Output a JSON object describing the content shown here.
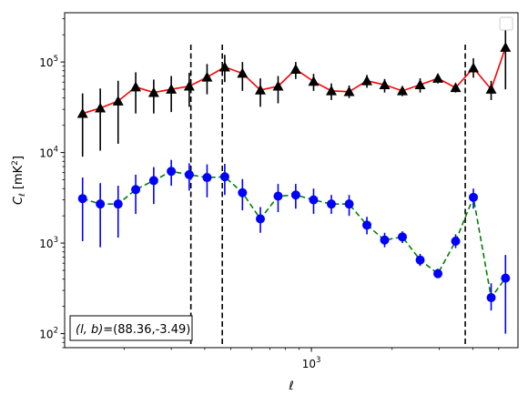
{
  "chart_data": {
    "type": "scatter",
    "xscale": "log",
    "yscale": "log",
    "xlim": [
      120,
      5900
    ],
    "ylim": [
      70,
      350000
    ],
    "grid": false,
    "xlabel": "ℓ",
    "ylabel": "C_ℓ [mK²]",
    "ylabel_main": "C",
    "ylabel_sub": "ℓ",
    "ylabel_unit": " [mK",
    "ylabel_unit_sup": "2",
    "ylabel_unit_close": "]",
    "x_tick_labels": [
      {
        "value": 1000,
        "base": "10",
        "exp": "3"
      }
    ],
    "y_tick_labels": [
      {
        "value": 100,
        "base": "10",
        "exp": "2"
      },
      {
        "value": 1000,
        "base": "10",
        "exp": "3"
      },
      {
        "value": 10000,
        "base": "10",
        "exp": "4"
      },
      {
        "value": 100000,
        "base": "10",
        "exp": "5"
      }
    ],
    "annotation": "(l, b)=(88.36,-3.49)",
    "annotation_lb": "(l, b)",
    "annotation_val": "=(88.36,-3.49)",
    "legend_placement": "top-right",
    "vlines": [
      355,
      465,
      3750
    ],
    "series": [
      {
        "marker": "triangle",
        "line_style": "solid",
        "color": "#000000",
        "line_color": "#ff0000",
        "err_color": "#000000",
        "x": [
          140,
          163,
          190,
          221,
          258,
          300,
          350,
          408,
          475,
          553,
          645,
          751,
          874,
          1019,
          1187,
          1383,
          1611,
          1876,
          2185,
          2545,
          2965,
          3453,
          4022,
          4685,
          5300
        ],
        "y": [
          27000,
          31000,
          37000,
          53000,
          46000,
          50000,
          54000,
          68000,
          88000,
          75000,
          49000,
          54000,
          83000,
          61000,
          48000,
          47000,
          62000,
          56000,
          48000,
          56000,
          66000,
          52000,
          86000,
          50000,
          145000
        ],
        "err_low": [
          9000,
          10500,
          12500,
          27000,
          27000,
          28000,
          32000,
          44000,
          60000,
          48000,
          32000,
          35000,
          65000,
          48000,
          38000,
          40000,
          52000,
          46000,
          42000,
          46000,
          58000,
          46000,
          67000,
          38000,
          50000
        ],
        "err_high": [
          45000,
          51000,
          62000,
          77000,
          64000,
          70000,
          76000,
          95000,
          120000,
          100000,
          66000,
          70000,
          100000,
          74000,
          58000,
          55000,
          72000,
          65000,
          54000,
          66000,
          74000,
          58000,
          110000,
          62000,
          250000
        ]
      },
      {
        "marker": "circle",
        "line_style": "dashed",
        "color": "#0000ff",
        "line_color": "#008000",
        "err_color": "#0000ff",
        "x": [
          140,
          163,
          190,
          221,
          258,
          300,
          350,
          408,
          475,
          553,
          645,
          751,
          874,
          1019,
          1187,
          1383,
          1611,
          1876,
          2185,
          2545,
          2965,
          3453,
          4022,
          4685,
          5300
        ],
        "y": [
          3100,
          2700,
          2700,
          3900,
          4900,
          6200,
          5700,
          5300,
          5400,
          3600,
          1850,
          3300,
          3400,
          3000,
          2700,
          2700,
          1580,
          1080,
          1170,
          650,
          460,
          1050,
          3200,
          250,
          410
        ],
        "err_low": [
          1050,
          900,
          1150,
          2100,
          2700,
          4300,
          3800,
          3200,
          3400,
          2300,
          1300,
          2200,
          2400,
          2100,
          2100,
          2000,
          1250,
          900,
          1000,
          560,
          410,
          880,
          2400,
          180,
          100
        ],
        "err_high": [
          5300,
          4600,
          4300,
          5700,
          6900,
          8300,
          7600,
          7400,
          7500,
          5100,
          2500,
          4500,
          4500,
          4000,
          3400,
          3400,
          1950,
          1300,
          1350,
          760,
          520,
          1250,
          4000,
          360,
          740
        ]
      }
    ]
  }
}
